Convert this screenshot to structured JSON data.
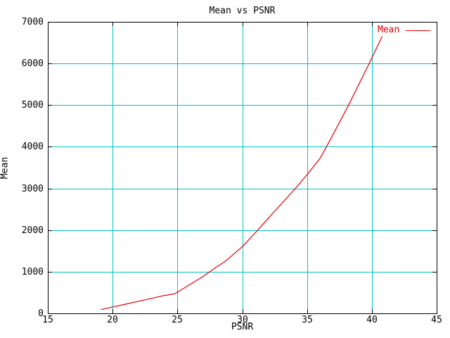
{
  "title": "Mean vs PSNR",
  "axes": {
    "xlabel": "PSNR",
    "ylabel": "Mean"
  },
  "legend": {
    "label": "Mean"
  },
  "colors": {
    "background": "#ffffff",
    "axis": "#000000",
    "grid": "#00c3c3",
    "line": "#e00000",
    "legend_text": "#e00000"
  },
  "chart_data": {
    "type": "line",
    "title": "Mean vs PSNR",
    "xlabel": "PSNR",
    "ylabel": "Mean",
    "xlim": [
      15,
      45
    ],
    "ylim": [
      0,
      7000
    ],
    "xticks": [
      15,
      20,
      25,
      30,
      35,
      40,
      45
    ],
    "yticks": [
      0,
      1000,
      2000,
      3000,
      4000,
      5000,
      6000,
      7000
    ],
    "grid": true,
    "legend_position": "top-right",
    "series": [
      {
        "name": "Mean",
        "color": "#e00000",
        "points": [
          [
            19.1,
            90
          ],
          [
            20,
            150
          ],
          [
            21,
            220
          ],
          [
            22,
            290
          ],
          [
            23,
            360
          ],
          [
            24,
            430
          ],
          [
            24.8,
            470
          ],
          [
            26,
            700
          ],
          [
            27,
            890
          ],
          [
            27.5,
            1000
          ],
          [
            28,
            1110
          ],
          [
            28.6,
            1230
          ],
          [
            29,
            1330
          ],
          [
            30,
            1600
          ],
          [
            31,
            1930
          ],
          [
            31.2,
            2000
          ],
          [
            32,
            2280
          ],
          [
            33,
            2620
          ],
          [
            34.1,
            3000
          ],
          [
            35,
            3330
          ],
          [
            36,
            3720
          ],
          [
            36.5,
            4000
          ],
          [
            37,
            4290
          ],
          [
            38.2,
            5000
          ],
          [
            39,
            5500
          ],
          [
            39.8,
            6000
          ],
          [
            40.3,
            6330
          ],
          [
            40.8,
            6650
          ]
        ]
      }
    ]
  }
}
